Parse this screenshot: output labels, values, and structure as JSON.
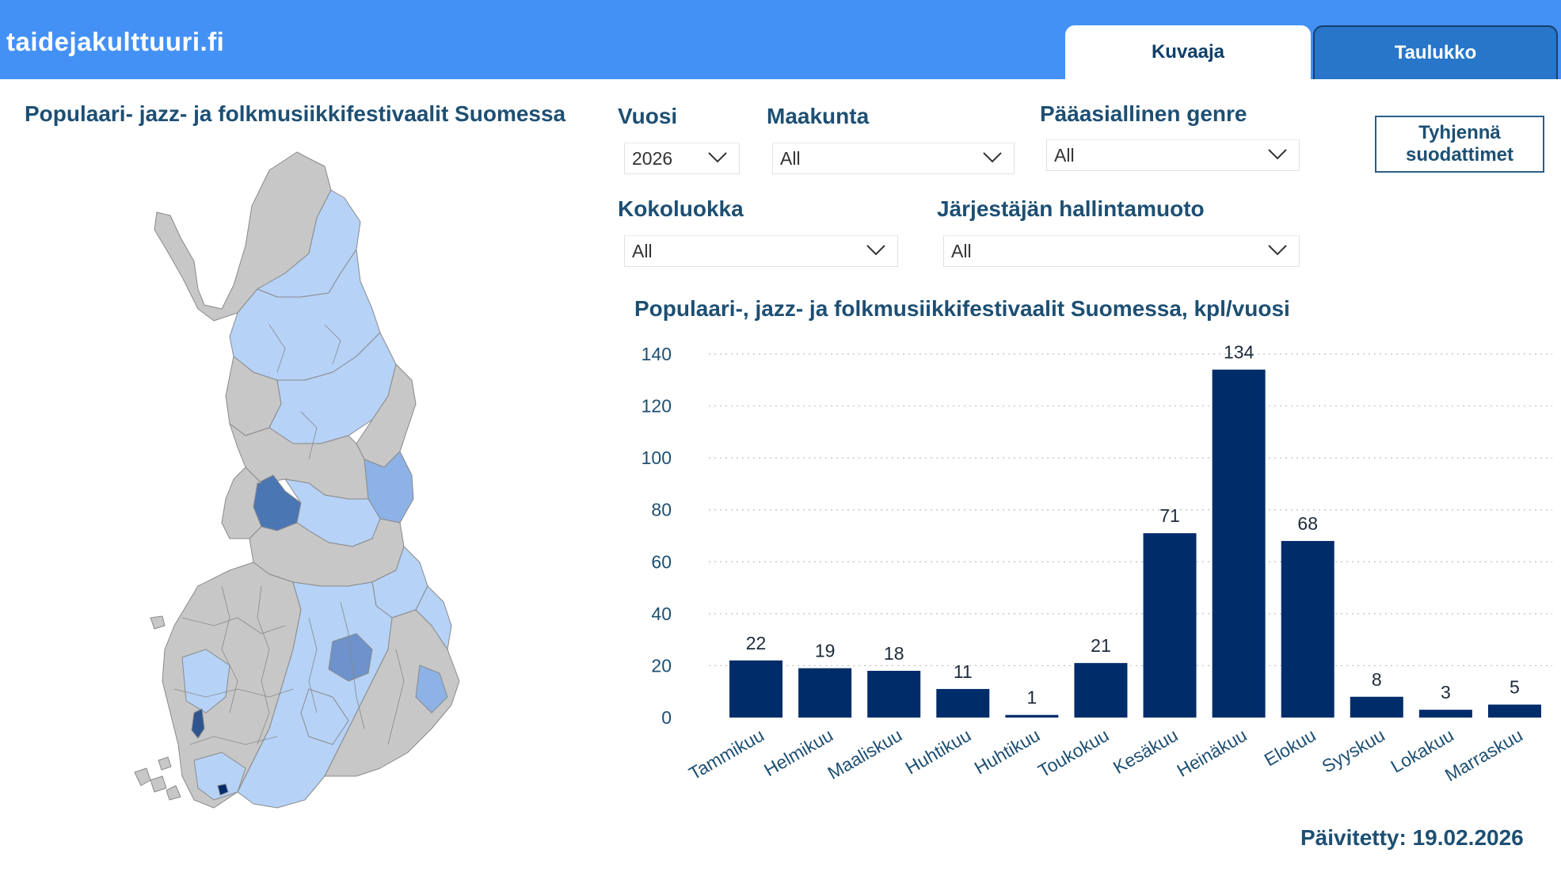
{
  "header": {
    "site_title": "taidejakulttuuri.fi",
    "tabs": [
      {
        "label": "Kuvaaja"
      },
      {
        "label": "Taulukko"
      }
    ]
  },
  "map": {
    "title": "Populaari- jazz- ja folkmusiikkifestivaalit Suomessa"
  },
  "filters": {
    "vuosi": {
      "label": "Vuosi",
      "value": "2026"
    },
    "maakunta": {
      "label": "Maakunta",
      "value": "All"
    },
    "genre": {
      "label": "Pääasiallinen genre",
      "value": "All"
    },
    "kokoluokka": {
      "label": "Kokoluokka",
      "value": "All"
    },
    "hallintamuoto": {
      "label": "Järjestäjän hallintamuoto",
      "value": "All"
    },
    "clear_label_line1": "Tyhjennä",
    "clear_label_line2": "suodattimet"
  },
  "chart_data": {
    "type": "bar",
    "title": "Populaari-, jazz- ja folkmusiikkifestivaalit Suomessa, kpl/vuosi",
    "categories": [
      "Tammikuu",
      "Helmikuu",
      "Maaliskuu",
      "Huhtikuu",
      "Huhtikuu",
      "Toukokuu",
      "Kesäkuu",
      "Heinäkuu",
      "Elokuu",
      "Syyskuu",
      "Lokakuu",
      "Marraskuu"
    ],
    "values": [
      22,
      19,
      18,
      11,
      1,
      21,
      71,
      134,
      68,
      8,
      3,
      5
    ],
    "ylim": [
      0,
      140
    ],
    "yticks": [
      0,
      20,
      40,
      60,
      80,
      100,
      120,
      140
    ],
    "grid": true,
    "bar_color": "#002c6a"
  },
  "footer": {
    "updated": "Päivitetty: 19.02.2026"
  },
  "colors": {
    "header_bg": "#4391f5",
    "accent_text": "#1d4f73",
    "map_gray": "#c7c7c7",
    "map_light": "#b6d2f7",
    "map_mid": "#8db2e6",
    "map_dark": "#4b76b4"
  }
}
